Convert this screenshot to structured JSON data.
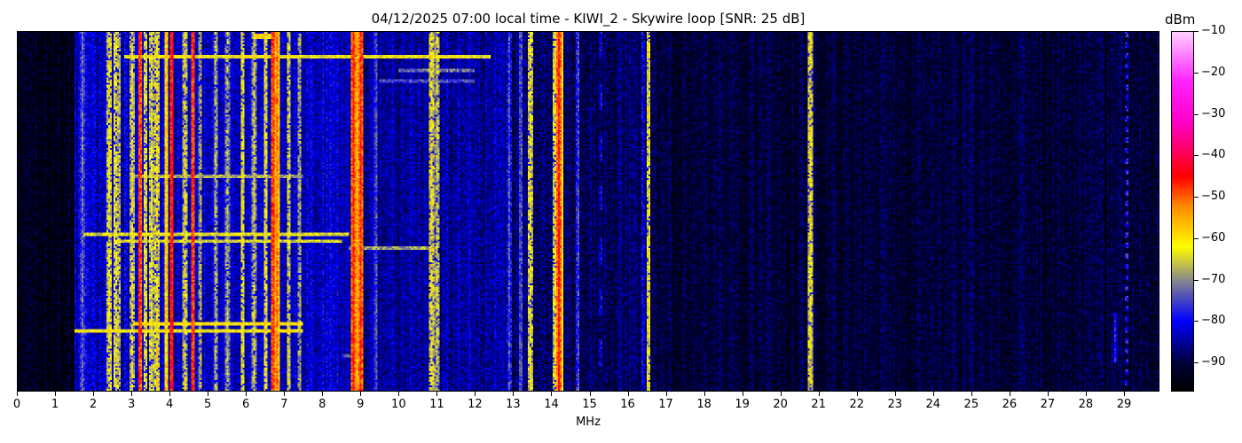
{
  "chart_data": {
    "type": "heatmap",
    "title": "04/12/2025 07:00 local time - KIWI_2 - Skywire loop [SNR: 25 dB]",
    "xlabel": "MHz",
    "ylabel": "",
    "xlim": [
      0,
      29.93
    ],
    "x_ticks": [
      "0",
      "1",
      "2",
      "3",
      "4",
      "5",
      "6",
      "7",
      "8",
      "9",
      "10",
      "11",
      "12",
      "13",
      "14",
      "15",
      "16",
      "17",
      "18",
      "19",
      "20",
      "21",
      "22",
      "23",
      "24",
      "25",
      "26",
      "27",
      "28",
      "29"
    ],
    "colorbar": {
      "label": "dBm",
      "range": [
        -97,
        -10
      ],
      "ticks": [
        "−10",
        "−20",
        "−30",
        "−40",
        "−50",
        "−60",
        "−70",
        "−80",
        "−90"
      ],
      "tick_values": [
        -10,
        -20,
        -30,
        -40,
        -50,
        -60,
        -70,
        -80,
        -90
      ],
      "colormap": [
        {
          "v": -97,
          "c": "#000000"
        },
        {
          "v": -90,
          "c": "#00003c"
        },
        {
          "v": -80,
          "c": "#0000ff"
        },
        {
          "v": -70,
          "c": "#8a8a8a"
        },
        {
          "v": -62,
          "c": "#ffff00"
        },
        {
          "v": -52,
          "c": "#ff8800"
        },
        {
          "v": -45,
          "c": "#ff0000"
        },
        {
          "v": -32,
          "c": "#ff00c8"
        },
        {
          "v": -22,
          "c": "#ff22ff"
        },
        {
          "v": -10,
          "c": "#ffd0ff"
        }
      ]
    },
    "noise_floor_dbm": [
      {
        "from": 0,
        "to": 1.5,
        "level": -94
      },
      {
        "from": 1.5,
        "to": 9.0,
        "level": -83
      },
      {
        "from": 9.0,
        "to": 12.8,
        "level": -85
      },
      {
        "from": 12.8,
        "to": 16.6,
        "level": -88
      },
      {
        "from": 16.6,
        "to": 30,
        "level": -91
      }
    ],
    "carriers_mhz_dbm": [
      [
        1.7,
        -72
      ],
      [
        2.4,
        -60
      ],
      [
        2.55,
        -60
      ],
      [
        2.65,
        -64
      ],
      [
        3.0,
        -62
      ],
      [
        3.2,
        -45
      ],
      [
        3.35,
        -60
      ],
      [
        3.5,
        -61
      ],
      [
        3.65,
        -60
      ],
      [
        3.9,
        -55
      ],
      [
        4.05,
        -42
      ],
      [
        4.4,
        -62
      ],
      [
        4.6,
        -45
      ],
      [
        4.8,
        -66
      ],
      [
        5.2,
        -65
      ],
      [
        5.5,
        -66
      ],
      [
        5.9,
        -60
      ],
      [
        6.2,
        -64
      ],
      [
        6.5,
        -60
      ],
      [
        6.7,
        -45
      ],
      [
        6.8,
        -50
      ],
      [
        7.1,
        -62
      ],
      [
        7.4,
        -66
      ],
      [
        8.8,
        -45
      ],
      [
        8.9,
        -56
      ],
      [
        9.0,
        -45
      ],
      [
        9.4,
        -73
      ],
      [
        10.85,
        -60
      ],
      [
        11.0,
        -63
      ],
      [
        12.9,
        -74
      ],
      [
        13.2,
        -72
      ],
      [
        13.45,
        -60
      ],
      [
        14.1,
        -60
      ],
      [
        14.2,
        -45
      ],
      [
        14.25,
        -56
      ],
      [
        14.7,
        -74
      ],
      [
        15.3,
        -79
      ],
      [
        16.4,
        -79
      ],
      [
        16.55,
        -60
      ],
      [
        20.8,
        -60
      ],
      [
        28.8,
        -78
      ],
      [
        29.1,
        -76
      ]
    ],
    "horizontal_bursts": [
      {
        "t": 0.065,
        "from": 2.8,
        "to": 12.4,
        "level": -62
      },
      {
        "t": 0.01,
        "from": 6.2,
        "to": 6.9,
        "level": -60
      },
      {
        "t": 0.105,
        "from": 10.0,
        "to": 12.0,
        "level": -72
      },
      {
        "t": 0.135,
        "from": 9.5,
        "to": 12.0,
        "level": -75
      },
      {
        "t": 0.4,
        "from": 3.0,
        "to": 7.5,
        "level": -68
      },
      {
        "t": 0.56,
        "from": 1.7,
        "to": 8.7,
        "level": -64
      },
      {
        "t": 0.58,
        "from": 2.5,
        "to": 8.5,
        "level": -65
      },
      {
        "t": 0.6,
        "from": 8.7,
        "to": 11.0,
        "level": -68
      },
      {
        "t": 0.81,
        "from": 3.0,
        "to": 7.5,
        "level": -60
      },
      {
        "t": 0.83,
        "from": 1.5,
        "to": 7.5,
        "level": -62
      },
      {
        "t": 0.9,
        "from": 8.5,
        "to": 9.0,
        "level": -75
      }
    ]
  }
}
